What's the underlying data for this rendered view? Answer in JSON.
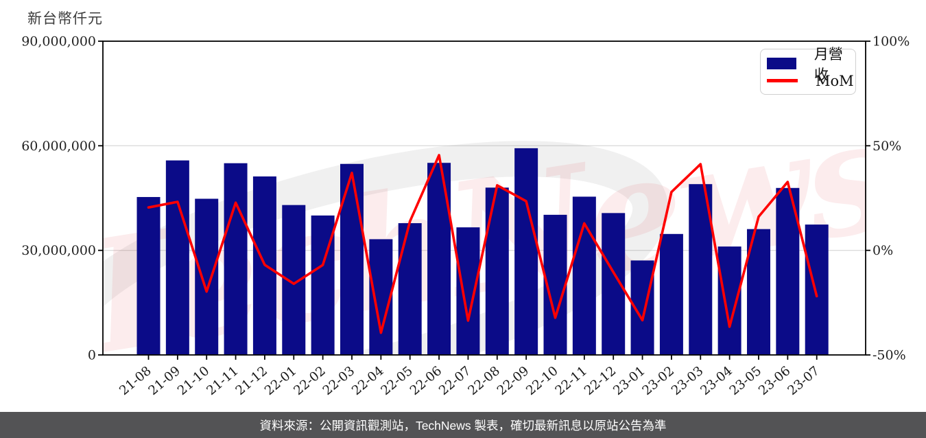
{
  "axis_title": "新台幣仟元",
  "legend": {
    "items": [
      {
        "label": "月營收",
        "type": "bar",
        "color": "#0b0b88"
      },
      {
        "label": "MoM",
        "type": "line",
        "color": "#ff0000"
      }
    ]
  },
  "watermark": {
    "text": "TechNews",
    "pink": "rgba(225,70,80,0.10)",
    "gray": "rgba(130,130,130,0.12)"
  },
  "footer": {
    "text": "資料來源：公開資訊觀測站，TechNews 製表，確切最新訊息以原站公告為準",
    "background": "#535355",
    "text_color": "#ffffff"
  },
  "chart_data": {
    "type": "bar",
    "title": "",
    "categories": [
      "21-08",
      "21-09",
      "21-10",
      "21-11",
      "21-12",
      "22-01",
      "22-02",
      "22-03",
      "22-04",
      "22-05",
      "22-06",
      "22-07",
      "22-08",
      "22-09",
      "22-10",
      "22-11",
      "22-12",
      "23-01",
      "23-02",
      "23-03",
      "23-04",
      "23-05",
      "23-06",
      "23-07"
    ],
    "series": [
      {
        "name": "月營收",
        "type": "bar",
        "axis": "left",
        "unit": "新台幣仟元",
        "color": "#0b0b88",
        "values": [
          45300000,
          55800000,
          44800000,
          55000000,
          51200000,
          43000000,
          40000000,
          54800000,
          33200000,
          37800000,
          55100000,
          36600000,
          48000000,
          59300000,
          40200000,
          45400000,
          40700000,
          27100000,
          34700000,
          49000000,
          31100000,
          36100000,
          47900000,
          37400000
        ]
      },
      {
        "name": "MoM",
        "type": "line",
        "axis": "right",
        "unit": "%",
        "color": "#ff0000",
        "values": [
          20.5,
          23.2,
          -19.7,
          22.8,
          -6.9,
          -16.0,
          -7.0,
          37.0,
          -39.4,
          13.9,
          45.5,
          -33.6,
          31.1,
          23.5,
          -32.2,
          12.9,
          -10.4,
          -33.4,
          27.9,
          41.2,
          -36.5,
          16.1,
          32.7,
          -21.9
        ]
      }
    ],
    "left_axis": {
      "title": "新台幣仟元",
      "range": [
        0,
        90000000
      ],
      "tick_values": [
        90000000,
        60000000,
        30000000,
        0
      ],
      "tick_labels": [
        "90,000,000",
        "60,000,000",
        "30,000,000",
        "0"
      ]
    },
    "right_axis": {
      "range": [
        -50,
        100
      ],
      "tick_values": [
        100,
        50,
        0,
        -50
      ],
      "tick_labels": [
        "100%",
        "50%",
        "0%",
        "-50%"
      ]
    },
    "grid": "horizontal",
    "grid_color": "#dcdcdc",
    "legend_position": "top-right",
    "xlabel": "",
    "ylabel": "新台幣仟元"
  }
}
